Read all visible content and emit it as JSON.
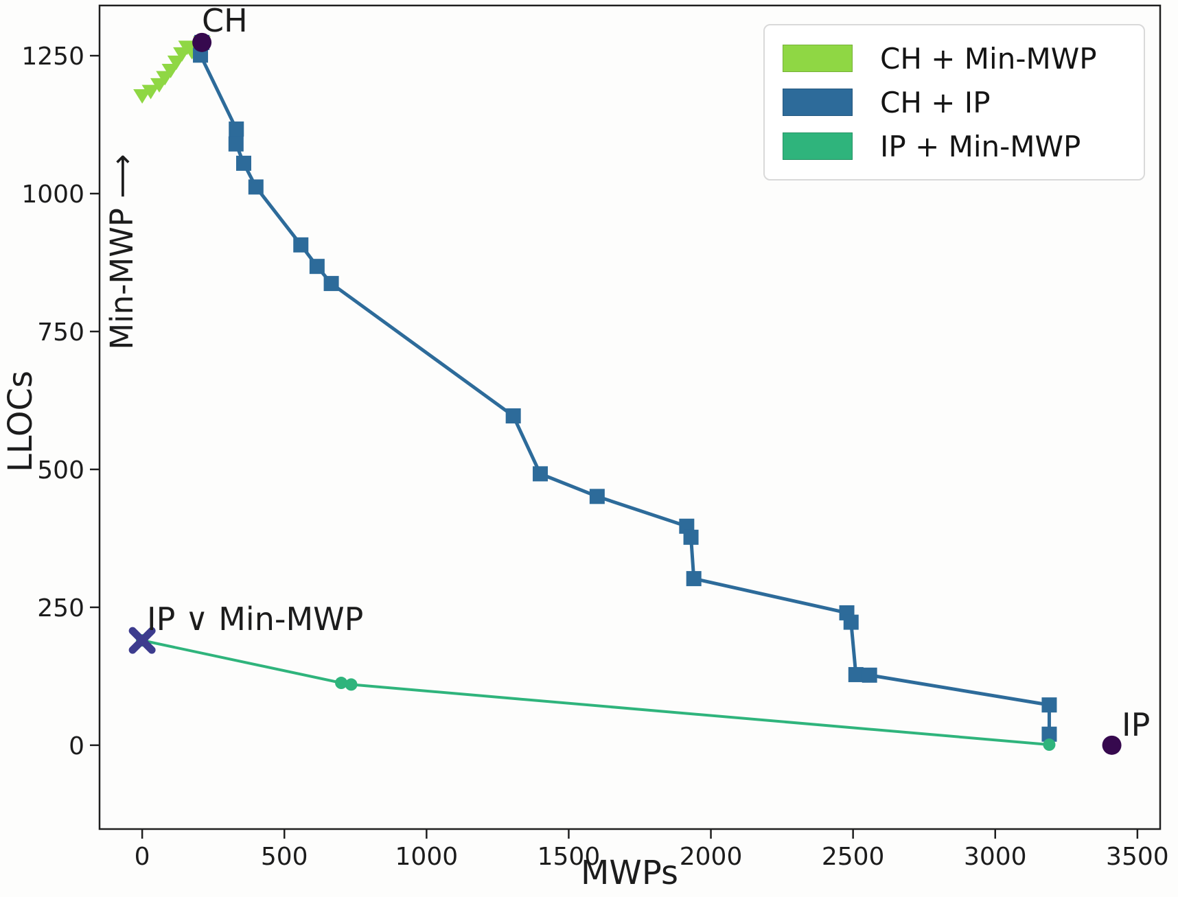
{
  "figure": {
    "background": "#fdfdfc",
    "frame_color": "#1f1f1f"
  },
  "chart_data": {
    "type": "line",
    "title": "",
    "xlabel": "MWPs",
    "ylabel": "LLOCs",
    "xlim": [
      -150,
      3580
    ],
    "ylim": [
      -152,
      1341
    ],
    "x_ticks": [
      0,
      500,
      1000,
      1500,
      2000,
      2500,
      3000,
      3500
    ],
    "y_ticks": [
      0,
      250,
      500,
      750,
      1000,
      1250
    ],
    "grid": false,
    "legend_position": "upper-right",
    "series": [
      {
        "name": "CH + Min-MWP",
        "color": "#8fd744",
        "marker": "triangle-down",
        "points": [
          [
            0,
            1178
          ],
          [
            30,
            1186
          ],
          [
            60,
            1198
          ],
          [
            80,
            1211
          ],
          [
            100,
            1224
          ],
          [
            120,
            1239
          ],
          [
            140,
            1254
          ],
          [
            158,
            1266
          ],
          [
            175,
            1258
          ],
          [
            210,
            1274
          ]
        ]
      },
      {
        "name": "CH + IP",
        "color": "#2d6b9a",
        "marker": "square",
        "points": [
          [
            210,
            1274
          ],
          [
            205,
            1251
          ],
          [
            331,
            1117
          ],
          [
            330,
            1090
          ],
          [
            357,
            1055
          ],
          [
            400,
            1012
          ],
          [
            558,
            907
          ],
          [
            615,
            868
          ],
          [
            665,
            837
          ],
          [
            1305,
            597
          ],
          [
            1400,
            492
          ],
          [
            1600,
            451
          ],
          [
            1915,
            397
          ],
          [
            1930,
            377
          ],
          [
            1940,
            302
          ],
          [
            2478,
            240
          ],
          [
            2493,
            223
          ],
          [
            2510,
            128
          ],
          [
            2558,
            127
          ],
          [
            3190,
            73
          ],
          [
            3190,
            20
          ]
        ]
      },
      {
        "name": "IP + Min-MWP",
        "color": "#2fb47c",
        "marker": "circle",
        "points": [
          [
            0,
            190
          ],
          [
            700,
            113
          ],
          [
            735,
            110
          ],
          [
            3190,
            1
          ]
        ]
      }
    ],
    "special_points": [
      {
        "label": "CH",
        "x": 210,
        "y": 1274,
        "marker": "circle",
        "color": "#36094e"
      },
      {
        "label": "IP",
        "x": 3410,
        "y": 0,
        "marker": "circle",
        "color": "#36094e"
      },
      {
        "label": "IP ∨ Min-MWP",
        "x": 0,
        "y": 190,
        "marker": "X",
        "color": "#3d3c8e"
      }
    ],
    "annotations": [
      {
        "text": "Min-MWP ⟶"
      }
    ]
  }
}
